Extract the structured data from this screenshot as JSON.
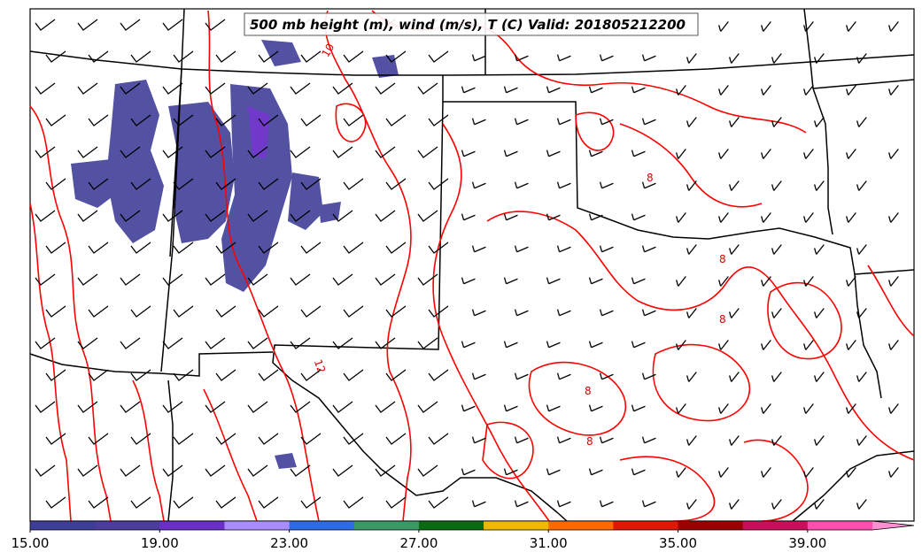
{
  "title": "500 mb height (m), wind (m/s), T (C) Valid: 201805212200",
  "colorbar": {
    "ticks": [
      "15.00",
      "19.00",
      "23.00",
      "27.00",
      "31.00",
      "35.00",
      "39.00"
    ],
    "colors": [
      "#3d3f96",
      "#4a3d9c",
      "#6a2fc8",
      "#a98cff",
      "#2e6be6",
      "#3a9a66",
      "#0b6b12",
      "#f0b800",
      "#ff6a00",
      "#e01800",
      "#9a0000",
      "#c8105a",
      "#ff4fae",
      "#ff8fd0"
    ]
  },
  "contour_labels": [
    "12",
    "8",
    "8",
    "8",
    "8",
    "8",
    "10"
  ],
  "colors": {
    "temperature_contour": "#ff0000",
    "borders": "#000000",
    "wind_barbs": "#000000",
    "wind_shading": "#3d3f96"
  }
}
